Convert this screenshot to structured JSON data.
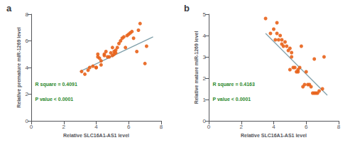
{
  "chart_data": [
    {
      "type": "scatter",
      "title": "a",
      "xlabel": "Relative SLC16A1-AS1 level",
      "ylabel": "Relative premature miR-1269 level",
      "xlim": [
        0,
        8
      ],
      "ylim": [
        0,
        8
      ],
      "xticks": [
        0,
        2,
        4,
        6,
        8
      ],
      "yticks": [
        0,
        2,
        4,
        6,
        8
      ],
      "grid": false,
      "annotations": [
        {
          "text": "R square = 0.4091",
          "color": "#2d8a2d"
        },
        {
          "text": "P value < 0.0001",
          "color": "#2d8a2d"
        }
      ],
      "series": [
        {
          "type": "scatter",
          "color": "#e8621a",
          "x": [
            3.1,
            3.3,
            3.5,
            3.6,
            3.8,
            4.0,
            4.0,
            4.1,
            4.1,
            4.2,
            4.3,
            4.3,
            4.5,
            4.5,
            4.6,
            4.7,
            4.8,
            4.9,
            5.0,
            5.0,
            5.1,
            5.1,
            5.2,
            5.2,
            5.3,
            5.4,
            5.5,
            5.6,
            5.7,
            5.8,
            5.9,
            6.0,
            6.1,
            6.2,
            6.3,
            6.5,
            6.6,
            6.7,
            7.0,
            7.1
          ],
          "values": [
            3.7,
            3.5,
            3.8,
            4.0,
            4.1,
            4.0,
            4.0,
            4.8,
            5.0,
            4.7,
            4.2,
            4.5,
            5.0,
            4.9,
            5.2,
            4.8,
            4.8,
            5.1,
            4.9,
            5.5,
            5.0,
            5.2,
            5.3,
            5.1,
            5.5,
            5.8,
            6.0,
            6.2,
            6.3,
            5.5,
            6.4,
            6.5,
            6.6,
            6.7,
            6.2,
            5.2,
            6.8,
            7.3,
            4.3,
            5.6
          ]
        },
        {
          "type": "line",
          "color": "#7f9faa",
          "x": [
            3.0,
            7.5
          ],
          "values": [
            3.7,
            6.3
          ]
        }
      ]
    },
    {
      "type": "scatter",
      "title": "b",
      "xlabel": "Relative SLC16A1-AS1 level",
      "ylabel": "Relative mature miR-1269 level",
      "xlim": [
        0,
        8
      ],
      "ylim": [
        0,
        5
      ],
      "xticks": [
        0,
        2,
        4,
        6,
        8
      ],
      "yticks": [
        0,
        1,
        2,
        3,
        4,
        5
      ],
      "grid": false,
      "annotations": [
        {
          "text": "R square = 0.4163",
          "color": "#2d8a2d"
        },
        {
          "text": "P value < 0.0001",
          "color": "#2d8a2d"
        }
      ],
      "series": [
        {
          "type": "scatter",
          "color": "#e8621a",
          "x": [
            3.5,
            3.8,
            4.0,
            4.1,
            4.2,
            4.2,
            4.3,
            4.4,
            4.5,
            4.5,
            4.6,
            4.7,
            4.8,
            4.9,
            5.0,
            5.0,
            5.1,
            5.1,
            5.2,
            5.3,
            5.4,
            5.5,
            5.5,
            5.6,
            5.7,
            5.8,
            5.9,
            6.0,
            6.1,
            6.2,
            6.3,
            6.4,
            6.5,
            6.5,
            6.6,
            6.7,
            6.8,
            7.0,
            7.1
          ],
          "values": [
            4.8,
            4.1,
            4.3,
            3.8,
            4.1,
            4.6,
            3.8,
            4.0,
            3.6,
            3.8,
            3.5,
            3.7,
            3.5,
            3.3,
            3.4,
            2.4,
            3.2,
            3.0,
            2.5,
            2.5,
            2.3,
            2.3,
            2.4,
            2.5,
            3.5,
            1.6,
            1.7,
            2.3,
            1.7,
            1.7,
            1.6,
            1.3,
            1.3,
            2.9,
            1.3,
            1.3,
            1.4,
            1.5,
            3.0
          ]
        },
        {
          "type": "line",
          "color": "#7f9faa",
          "x": [
            3.5,
            7.3
          ],
          "values": [
            4.1,
            1.2
          ]
        }
      ]
    }
  ]
}
